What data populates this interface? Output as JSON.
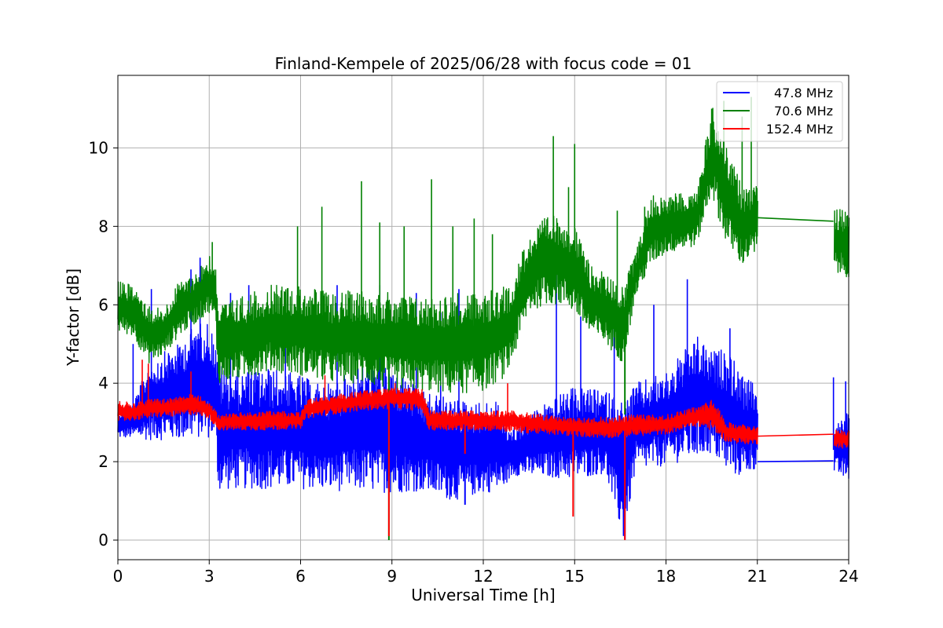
{
  "chart_data": {
    "type": "line",
    "title": "Finland-Kempele of 2025/06/28 with focus code = 01",
    "xlabel": "Universal Time [h]",
    "ylabel": "Y-factor [dB]",
    "xlim": [
      0,
      24
    ],
    "ylim": [
      -0.5,
      11.85
    ],
    "xticks": [
      0,
      3,
      6,
      9,
      12,
      15,
      18,
      21,
      24
    ],
    "yticks": [
      0,
      2,
      4,
      6,
      8,
      10
    ],
    "grid": true,
    "legend_position": "top-right",
    "series": [
      {
        "name": "47.8 MHz",
        "color": "#0000ff",
        "x": [
          0,
          0.5,
          1,
          1.5,
          2,
          2.5,
          3,
          3.2,
          3.3,
          4,
          5,
          6,
          6.5,
          7,
          8,
          9,
          10,
          11,
          12,
          12.5,
          12.7,
          13,
          14,
          15,
          16,
          16.6,
          17,
          18,
          19,
          19.5,
          20,
          20.5,
          21,
          23.5,
          24
        ],
        "low": [
          2.6,
          2.6,
          2.55,
          2.55,
          2.55,
          2.6,
          2.6,
          2.6,
          1.25,
          1.3,
          1.3,
          1.3,
          1.3,
          1.25,
          1.25,
          1.2,
          1.25,
          1.0,
          1.2,
          1.25,
          1.4,
          1.65,
          1.6,
          1.55,
          1.7,
          0.0,
          1.75,
          1.9,
          2.1,
          2.2,
          1.7,
          1.6,
          1.85,
          1.7,
          1.5
        ],
        "high": [
          3.3,
          3.5,
          4.5,
          4.8,
          5.0,
          5.5,
          5.6,
          5.0,
          4.5,
          4.3,
          4.4,
          4.2,
          4.0,
          4.0,
          4.5,
          4.4,
          3.8,
          3.6,
          3.5,
          3.6,
          3.0,
          2.9,
          3.5,
          3.9,
          3.8,
          3.6,
          4.0,
          4.3,
          5.2,
          4.8,
          4.9,
          4.2,
          3.9,
          2.9,
          3.3
        ],
        "spikes": [
          [
            0.5,
            5.0
          ],
          [
            1.1,
            6.4
          ],
          [
            2.4,
            6.9
          ],
          [
            2.7,
            7.2
          ],
          [
            3.7,
            6.3
          ],
          [
            4.3,
            6.5
          ],
          [
            5.5,
            6.3
          ],
          [
            7.2,
            6.5
          ],
          [
            8.6,
            6.5
          ],
          [
            9.8,
            6.3
          ],
          [
            10.6,
            5.8
          ],
          [
            11.2,
            6.4
          ],
          [
            14.4,
            6.8
          ],
          [
            15.2,
            5.7
          ],
          [
            16.3,
            5.7
          ],
          [
            17.6,
            6.0
          ],
          [
            18.7,
            6.65
          ],
          [
            20.1,
            5.4
          ],
          [
            23.5,
            4.15
          ],
          [
            23.9,
            4.05
          ]
        ],
        "dips": [
          [
            16.65,
            0.02
          ],
          [
            11.4,
            0.9
          ]
        ]
      },
      {
        "name": "70.6 MHz",
        "color": "#008000",
        "x": [
          0,
          0.5,
          1,
          1.5,
          2,
          2.5,
          3,
          3.2,
          3.3,
          4,
          5,
          6,
          7,
          8,
          9,
          10,
          11,
          12,
          12.8,
          13.5,
          14,
          14.5,
          15,
          15.5,
          16,
          16.6,
          17,
          17.5,
          18,
          19,
          19.5,
          20,
          20.5,
          21,
          23.5,
          24
        ],
        "low": [
          5.3,
          5.2,
          4.5,
          4.7,
          5.2,
          5.5,
          5.8,
          5.5,
          4.0,
          4.1,
          4.3,
          4.2,
          4.0,
          4.0,
          3.8,
          3.8,
          3.7,
          3.8,
          4.2,
          5.8,
          6.0,
          6.0,
          5.8,
          5.2,
          5.0,
          4.5,
          6.2,
          7.0,
          7.3,
          7.5,
          8.8,
          7.5,
          7.0,
          7.3,
          6.8,
          6.7
        ],
        "high": [
          6.6,
          6.5,
          6.0,
          5.9,
          6.6,
          6.8,
          7.3,
          7.0,
          6.0,
          6.2,
          6.5,
          6.5,
          6.3,
          6.4,
          6.3,
          6.2,
          6.3,
          6.3,
          6.5,
          7.8,
          8.2,
          8.3,
          8.0,
          7.0,
          6.8,
          6.5,
          7.4,
          8.8,
          8.8,
          8.9,
          11.1,
          10.0,
          9.0,
          9.1,
          8.5,
          8.4
        ],
        "spikes": [
          [
            3.1,
            7.6
          ],
          [
            5.9,
            8.0
          ],
          [
            6.7,
            8.5
          ],
          [
            8.0,
            9.15
          ],
          [
            8.6,
            8.1
          ],
          [
            9.4,
            8.0
          ],
          [
            10.3,
            9.2
          ],
          [
            11.0,
            8.0
          ],
          [
            11.7,
            8.2
          ],
          [
            12.3,
            7.8
          ],
          [
            14.3,
            10.3
          ],
          [
            14.8,
            9.0
          ],
          [
            15.0,
            10.1
          ],
          [
            16.4,
            8.4
          ],
          [
            17.3,
            8.5
          ],
          [
            19.5,
            11.0
          ],
          [
            19.9,
            11.2
          ],
          [
            20.5,
            10.8
          ],
          [
            20.8,
            11.3
          ]
        ],
        "dips": [
          [
            8.9,
            0.0
          ],
          [
            16.65,
            3.2
          ]
        ]
      },
      {
        "name": "152.4 MHz",
        "color": "#ff0000",
        "x": [
          0,
          0.5,
          1,
          1.5,
          2,
          2.5,
          3,
          3.3,
          4,
          5,
          6,
          6.2,
          7,
          8,
          9,
          10,
          10.2,
          11,
          12,
          13,
          14,
          15,
          16,
          17,
          18,
          19,
          19.5,
          20,
          20.5,
          21,
          23.5,
          24
        ],
        "low": [
          3.0,
          3.05,
          3.1,
          3.15,
          3.15,
          3.2,
          3.1,
          2.8,
          2.8,
          2.8,
          2.85,
          3.1,
          3.2,
          3.3,
          3.35,
          3.3,
          2.8,
          2.8,
          2.8,
          2.75,
          2.7,
          2.65,
          2.6,
          2.65,
          2.7,
          2.9,
          2.8,
          2.5,
          2.45,
          2.45,
          2.4,
          2.3
        ],
        "high": [
          3.55,
          3.5,
          3.6,
          3.6,
          3.65,
          3.8,
          3.5,
          3.2,
          3.25,
          3.3,
          3.25,
          3.6,
          3.7,
          3.8,
          3.9,
          3.85,
          3.3,
          3.3,
          3.3,
          3.3,
          3.2,
          3.1,
          3.15,
          3.2,
          3.2,
          3.4,
          3.6,
          3.0,
          2.95,
          2.9,
          2.85,
          2.8
        ],
        "spikes": [
          [
            0.8,
            4.6
          ],
          [
            1.0,
            4.5
          ],
          [
            2.4,
            4.3
          ],
          [
            6.8,
            4.2
          ],
          [
            9.1,
            4.0
          ],
          [
            12.8,
            4.0
          ]
        ],
        "dips": [
          [
            8.9,
            0.1
          ],
          [
            11.4,
            2.2
          ],
          [
            14.95,
            0.6
          ],
          [
            16.65,
            0.0
          ]
        ]
      }
    ],
    "gaps": [
      [
        21.0,
        23.5
      ]
    ],
    "gap_bridges": [
      {
        "series": "47.8 MHz",
        "from": [
          21.0,
          2.0
        ],
        "to": [
          23.5,
          2.02
        ]
      },
      {
        "series": "70.6 MHz",
        "from": [
          21.0,
          8.22
        ],
        "to": [
          23.5,
          8.13
        ]
      },
      {
        "series": "152.4 MHz",
        "from": [
          21.0,
          2.65
        ],
        "to": [
          23.5,
          2.7
        ]
      }
    ]
  }
}
